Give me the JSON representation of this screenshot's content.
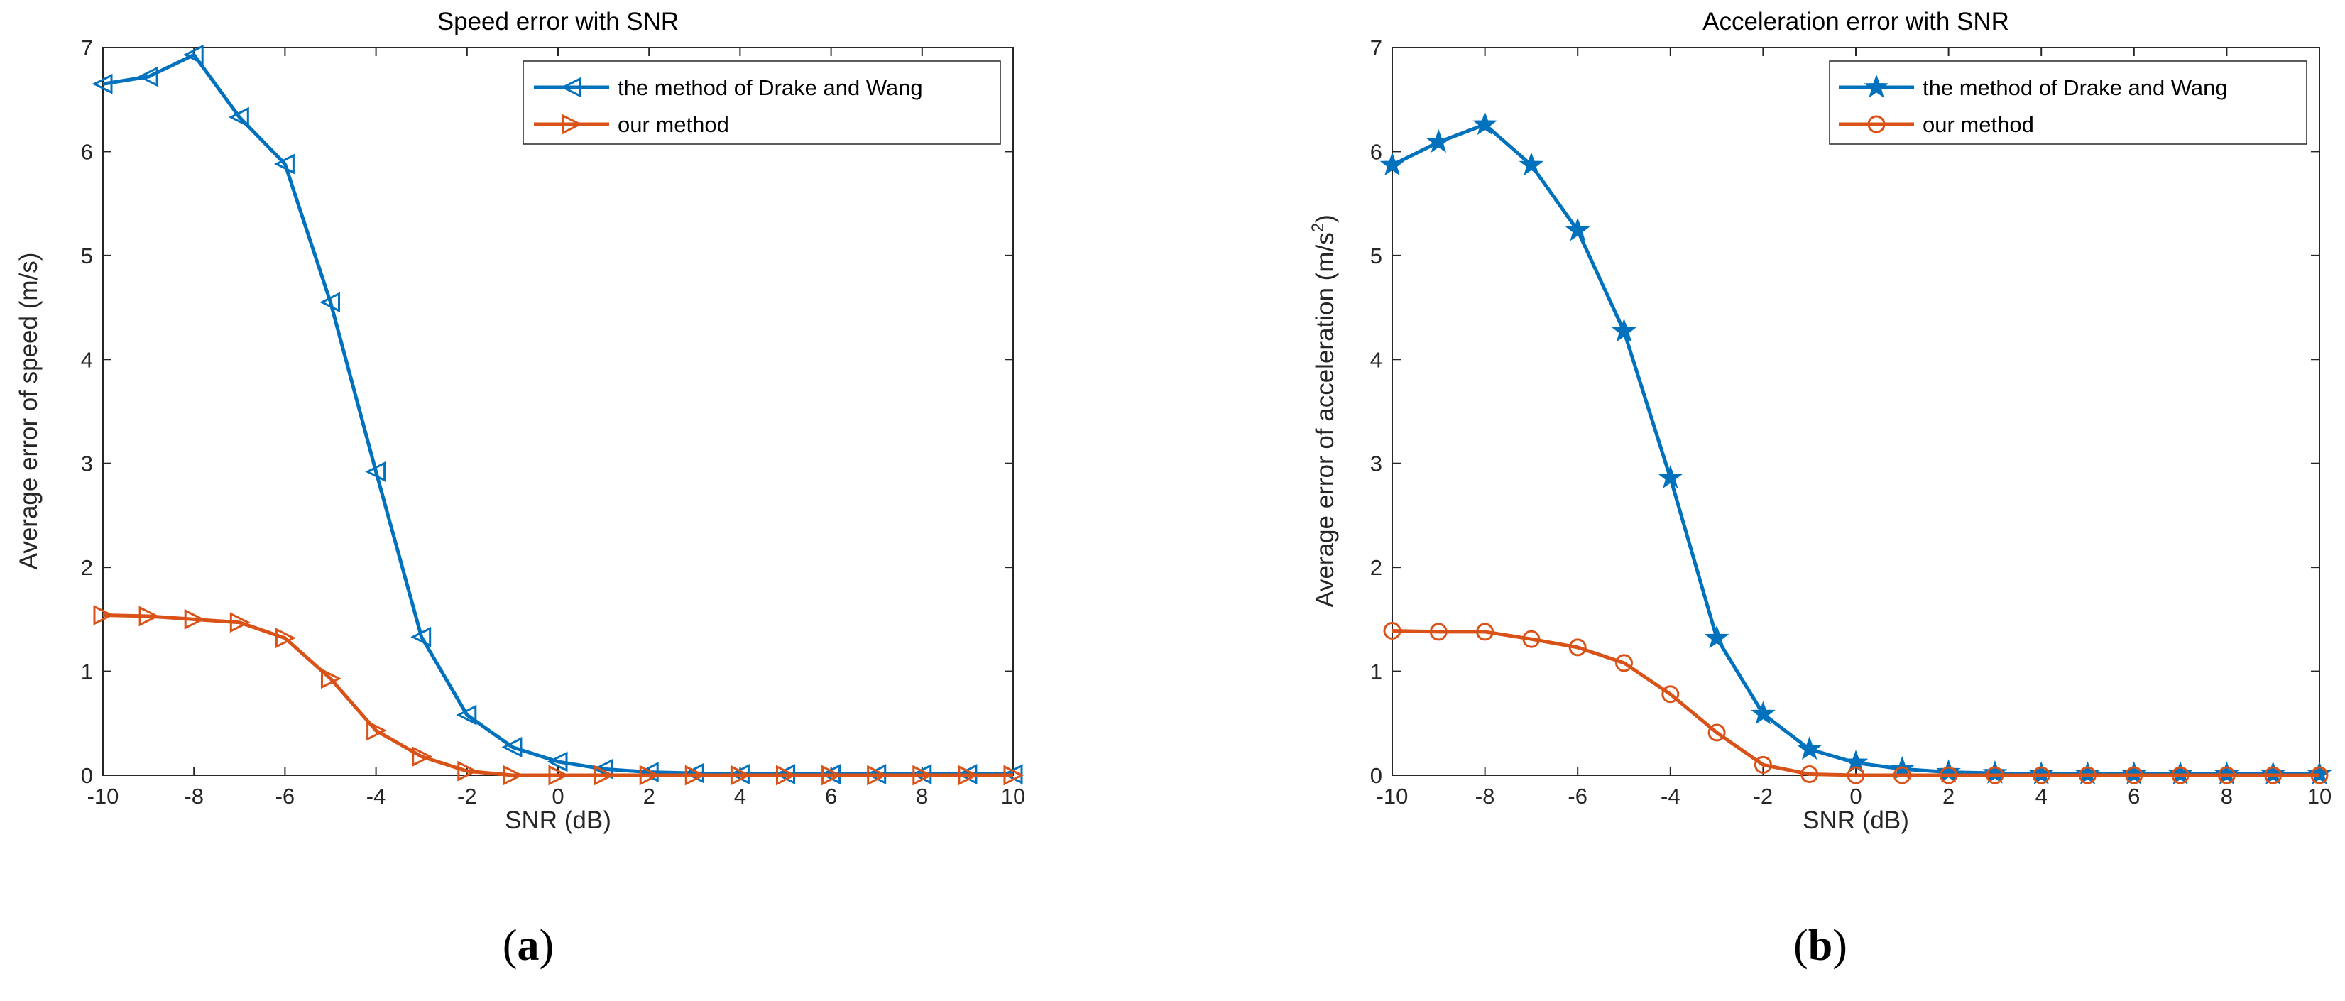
{
  "chart_data": [
    {
      "type": "line",
      "title": "Speed error with SNR",
      "xlabel": "SNR (dB)",
      "ylabel": "Average error of speed (m/s)",
      "ylabel_sup": "",
      "ylabel_tail": "",
      "xlim": [
        -10,
        10
      ],
      "ylim": [
        0,
        7
      ],
      "xticks": [
        "-10",
        "-8",
        "-6",
        "-4",
        "-2",
        "0",
        "2",
        "4",
        "6",
        "8",
        "10"
      ],
      "yticks": [
        "0",
        "1",
        "2",
        "3",
        "4",
        "5",
        "6",
        "7"
      ],
      "x": [
        -10,
        -9,
        -8,
        -7,
        -6,
        -5,
        -4,
        -3,
        -2,
        -1,
        0,
        1,
        2,
        3,
        4,
        5,
        6,
        7,
        8,
        9,
        10
      ],
      "series": [
        {
          "name": "the method of Drake and Wang",
          "color": "#0072BD",
          "marker": "triangle-left",
          "values": [
            6.65,
            6.72,
            6.93,
            6.33,
            5.88,
            4.55,
            2.92,
            1.33,
            0.58,
            0.27,
            0.13,
            0.06,
            0.03,
            0.02,
            0.01,
            0.01,
            0.01,
            0.01,
            0.01,
            0.01,
            0.01
          ]
        },
        {
          "name": "our method",
          "color": "#D95319",
          "marker": "triangle-right",
          "values": [
            1.54,
            1.53,
            1.5,
            1.47,
            1.32,
            0.93,
            0.43,
            0.18,
            0.04,
            0.0,
            0.0,
            0.0,
            0.0,
            0.0,
            0.0,
            0.0,
            0.0,
            0.0,
            0.0,
            0.0,
            0.0
          ]
        }
      ],
      "legend_position": "top-right",
      "sublabel_open": "(",
      "sublabel_letter": "a",
      "sublabel_close": ")"
    },
    {
      "type": "line",
      "title": "Acceleration error with SNR",
      "xlabel": "SNR (dB)",
      "ylabel": "Average error of acceleration (m/s",
      "ylabel_sup": "2",
      "ylabel_tail": ")",
      "xlim": [
        -10,
        10
      ],
      "ylim": [
        0,
        7
      ],
      "xticks": [
        "-10",
        "-8",
        "-6",
        "-4",
        "-2",
        "0",
        "2",
        "4",
        "6",
        "8",
        "10"
      ],
      "yticks": [
        "0",
        "1",
        "2",
        "3",
        "4",
        "5",
        "6",
        "7"
      ],
      "x": [
        -10,
        -9,
        -8,
        -7,
        -6,
        -5,
        -4,
        -3,
        -2,
        -1,
        0,
        1,
        2,
        3,
        4,
        5,
        6,
        7,
        8,
        9,
        10
      ],
      "series": [
        {
          "name": "the method of Drake and Wang",
          "color": "#0072BD",
          "marker": "star",
          "values": [
            5.87,
            6.09,
            6.26,
            5.87,
            5.24,
            4.27,
            2.86,
            1.32,
            0.59,
            0.25,
            0.12,
            0.06,
            0.03,
            0.02,
            0.01,
            0.01,
            0.01,
            0.01,
            0.01,
            0.01,
            0.01
          ]
        },
        {
          "name": "our method",
          "color": "#D95319",
          "marker": "circle",
          "values": [
            1.39,
            1.38,
            1.38,
            1.31,
            1.23,
            1.08,
            0.78,
            0.41,
            0.1,
            0.01,
            0.0,
            0.0,
            0.0,
            0.0,
            0.0,
            0.0,
            0.0,
            0.0,
            0.0,
            0.0,
            0.0
          ]
        }
      ],
      "legend_position": "top-right",
      "sublabel_open": "(",
      "sublabel_letter": "b",
      "sublabel_close": ")"
    }
  ]
}
